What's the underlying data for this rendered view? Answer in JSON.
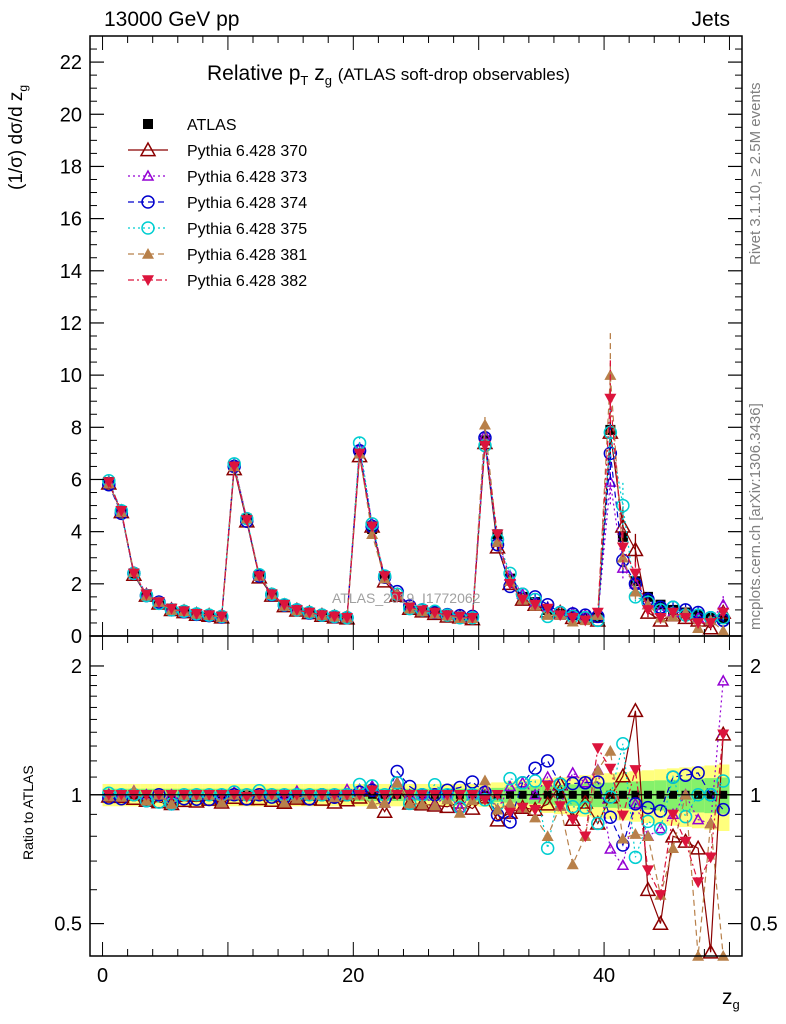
{
  "header": {
    "left": "13000 GeV pp",
    "right": "Jets"
  },
  "side_text": {
    "rivet": "Rivet 3.1.10, ≥ 2.5M events",
    "mcplots": "mcplots.cern.ch [arXiv:1306.3436]"
  },
  "watermark": "ATLAS_2019_I1772062",
  "colors": {
    "ATLAS": "#000000",
    "370": "#8b0000",
    "373": "#9400d3",
    "374": "#0000cd",
    "375": "#00ced1",
    "381": "#b8804a",
    "382": "#dc143c",
    "band_yellow": "#ffff66",
    "band_green": "#66ee66"
  },
  "chart_data": [
    {
      "type": "scatter",
      "title_main": "Relative p",
      "title_sub": "T",
      "title_z": "z",
      "title_zsub": "g",
      "title_rest": "(ATLAS soft-drop observables)",
      "ylabel": "(1/σ) dσ/d z",
      "ylabel_sub": "g",
      "xlabel": "z",
      "xlabel_sub": "g",
      "xlim": [
        -1,
        51
      ],
      "ylim": [
        0,
        23
      ],
      "xticks": [
        "0",
        "20",
        "40"
      ],
      "yticks": [
        "0",
        "2",
        "4",
        "6",
        "8",
        "10",
        "12",
        "14",
        "16",
        "18",
        "20",
        "22"
      ],
      "legend": [
        {
          "label": "ATLAS",
          "marker": "square-filled",
          "color": "#000000",
          "dash": ""
        },
        {
          "label": "Pythia 6.428 370",
          "marker": "triangle-open",
          "color": "#8b0000",
          "dash": ""
        },
        {
          "label": "Pythia 6.428 373",
          "marker": "triangle-open-small",
          "color": "#9400d3",
          "dash": "2,3"
        },
        {
          "label": "Pythia 6.428 374",
          "marker": "circle-open",
          "color": "#0000cd",
          "dash": "6,4"
        },
        {
          "label": "Pythia 6.428 375",
          "marker": "circle-open",
          "color": "#00ced1",
          "dash": "2,3"
        },
        {
          "label": "Pythia 6.428 381",
          "marker": "triangle-filled",
          "color": "#b8804a",
          "dash": "6,4"
        },
        {
          "label": "Pythia 6.428 382",
          "marker": "triangle-down-filled",
          "color": "#dc143c",
          "dash": "6,3,2,3"
        }
      ],
      "x": [
        0.5,
        1.5,
        2.5,
        3.5,
        4.5,
        5.5,
        6.5,
        7.5,
        8.5,
        9.5,
        10.5,
        11.5,
        12.5,
        13.5,
        14.5,
        15.5,
        16.5,
        17.5,
        18.5,
        19.5,
        20.5,
        21.5,
        22.5,
        23.5,
        24.5,
        25.5,
        26.5,
        27.5,
        28.5,
        29.5,
        30.5,
        31.5,
        32.5,
        33.5,
        34.5,
        35.5,
        36.5,
        37.5,
        38.5,
        39.5,
        40.5,
        41.5,
        42.5,
        43.5,
        44.5,
        45.5,
        46.5,
        47.5,
        48.5,
        49.5
      ],
      "series": [
        {
          "name": "ATLAS",
          "values": [
            5.9,
            4.8,
            2.4,
            1.6,
            1.3,
            1.05,
            0.95,
            0.85,
            0.8,
            0.75,
            6.5,
            4.5,
            2.3,
            1.6,
            1.2,
            1.0,
            0.9,
            0.8,
            0.75,
            0.7,
            7.0,
            4.1,
            2.3,
            1.5,
            1.1,
            1.0,
            0.9,
            0.8,
            0.75,
            0.7,
            7.5,
            3.9,
            2.2,
            1.5,
            1.3,
            1.0,
            0.85,
            0.8,
            0.75,
            0.7,
            7.9,
            3.8,
            2.1,
            1.5,
            1.2,
            1.0,
            0.9,
            0.8,
            0.7,
            0.65
          ]
        },
        {
          "name": "Pythia 6.428 370",
          "values": [
            5.85,
            4.75,
            2.35,
            1.55,
            1.25,
            1.0,
            0.92,
            0.82,
            0.78,
            0.72,
            6.4,
            4.4,
            2.25,
            1.55,
            1.15,
            0.98,
            0.88,
            0.78,
            0.72,
            0.68,
            6.9,
            4.2,
            2.1,
            1.55,
            1.05,
            0.95,
            0.85,
            0.75,
            0.72,
            0.65,
            7.4,
            3.4,
            2.0,
            1.4,
            1.2,
            0.95,
            0.9,
            0.7,
            0.72,
            0.6,
            7.8,
            4.2,
            3.3,
            0.9,
            0.6,
            0.8,
            0.7,
            0.6,
            0.3,
            0.9
          ]
        },
        {
          "name": "Pythia 6.428 373",
          "values": [
            5.9,
            4.8,
            2.45,
            1.6,
            1.3,
            1.05,
            0.95,
            0.85,
            0.8,
            0.75,
            6.6,
            4.5,
            2.3,
            1.6,
            1.2,
            1.02,
            0.9,
            0.8,
            0.75,
            0.72,
            7.2,
            4.3,
            2.2,
            1.6,
            1.1,
            1.0,
            0.85,
            0.8,
            0.7,
            0.7,
            7.7,
            3.6,
            2.3,
            1.6,
            1.3,
            1.1,
            0.8,
            0.9,
            0.8,
            0.8,
            5.9,
            2.6,
            2.0,
            1.2,
            1.0,
            0.9,
            0.9,
            0.7,
            0.6,
            1.2
          ]
        },
        {
          "name": "Pythia 6.428 374",
          "values": [
            5.8,
            4.7,
            2.4,
            1.55,
            1.3,
            1.0,
            0.93,
            0.83,
            0.78,
            0.73,
            6.5,
            4.4,
            2.3,
            1.58,
            1.18,
            1.0,
            0.88,
            0.8,
            0.74,
            0.7,
            7.1,
            4.2,
            2.25,
            1.7,
            1.15,
            1.0,
            0.9,
            0.82,
            0.78,
            0.75,
            7.6,
            3.5,
            1.9,
            1.6,
            1.5,
            1.2,
            0.9,
            0.85,
            0.8,
            0.75,
            7.0,
            2.9,
            2.0,
            1.4,
            1.1,
            1.1,
            1.0,
            0.9,
            0.7,
            0.6
          ]
        },
        {
          "name": "Pythia 6.428 375",
          "values": [
            5.95,
            4.8,
            2.4,
            1.55,
            1.25,
            1.0,
            0.95,
            0.85,
            0.8,
            0.75,
            6.6,
            4.5,
            2.35,
            1.6,
            1.2,
            1.0,
            0.9,
            0.8,
            0.75,
            0.7,
            7.4,
            4.3,
            2.3,
            1.6,
            1.05,
            1.0,
            0.95,
            0.8,
            0.7,
            0.7,
            7.3,
            3.7,
            2.4,
            1.6,
            1.4,
            0.75,
            0.9,
            0.75,
            0.7,
            0.6,
            7.8,
            5.0,
            1.5,
            1.3,
            1.0,
            1.1,
            0.8,
            0.8,
            0.7,
            0.7
          ]
        },
        {
          "name": "Pythia 6.428 381",
          "values": [
            5.85,
            4.75,
            2.45,
            1.55,
            1.3,
            1.0,
            0.95,
            0.85,
            0.8,
            0.72,
            6.5,
            4.5,
            2.3,
            1.6,
            1.15,
            0.98,
            0.9,
            0.8,
            0.74,
            0.7,
            7.0,
            3.9,
            2.2,
            1.6,
            1.05,
            0.95,
            0.85,
            0.78,
            0.68,
            0.68,
            8.1,
            3.6,
            2.1,
            1.4,
            1.15,
            0.8,
            0.8,
            0.55,
            0.6,
            0.8,
            10.0,
            3.0,
            1.7,
            1.2,
            0.7,
            0.75,
            0.9,
            0.3,
            0.6,
            0.2
          ]
        },
        {
          "name": "Pythia 6.428 382",
          "values": [
            5.9,
            4.8,
            2.4,
            1.6,
            1.3,
            1.05,
            0.95,
            0.85,
            0.8,
            0.75,
            6.5,
            4.45,
            2.3,
            1.6,
            1.2,
            1.0,
            0.9,
            0.8,
            0.75,
            0.7,
            7.0,
            4.2,
            2.3,
            1.5,
            1.1,
            1.0,
            0.9,
            0.8,
            0.75,
            0.7,
            7.3,
            3.9,
            2.0,
            1.4,
            1.2,
            1.05,
            0.8,
            0.7,
            0.6,
            0.9,
            9.1,
            3.4,
            2.4,
            1.0,
            0.7,
            0.9,
            0.7,
            0.5,
            0.5,
            0.9
          ]
        }
      ]
    },
    {
      "type": "scatter",
      "ylabel": "Ratio to ATLAS",
      "ylim": [
        0.42,
        2.35
      ],
      "ylog": true,
      "yticks": [
        "0.5",
        "1",
        "2"
      ],
      "reference": 1
    }
  ]
}
